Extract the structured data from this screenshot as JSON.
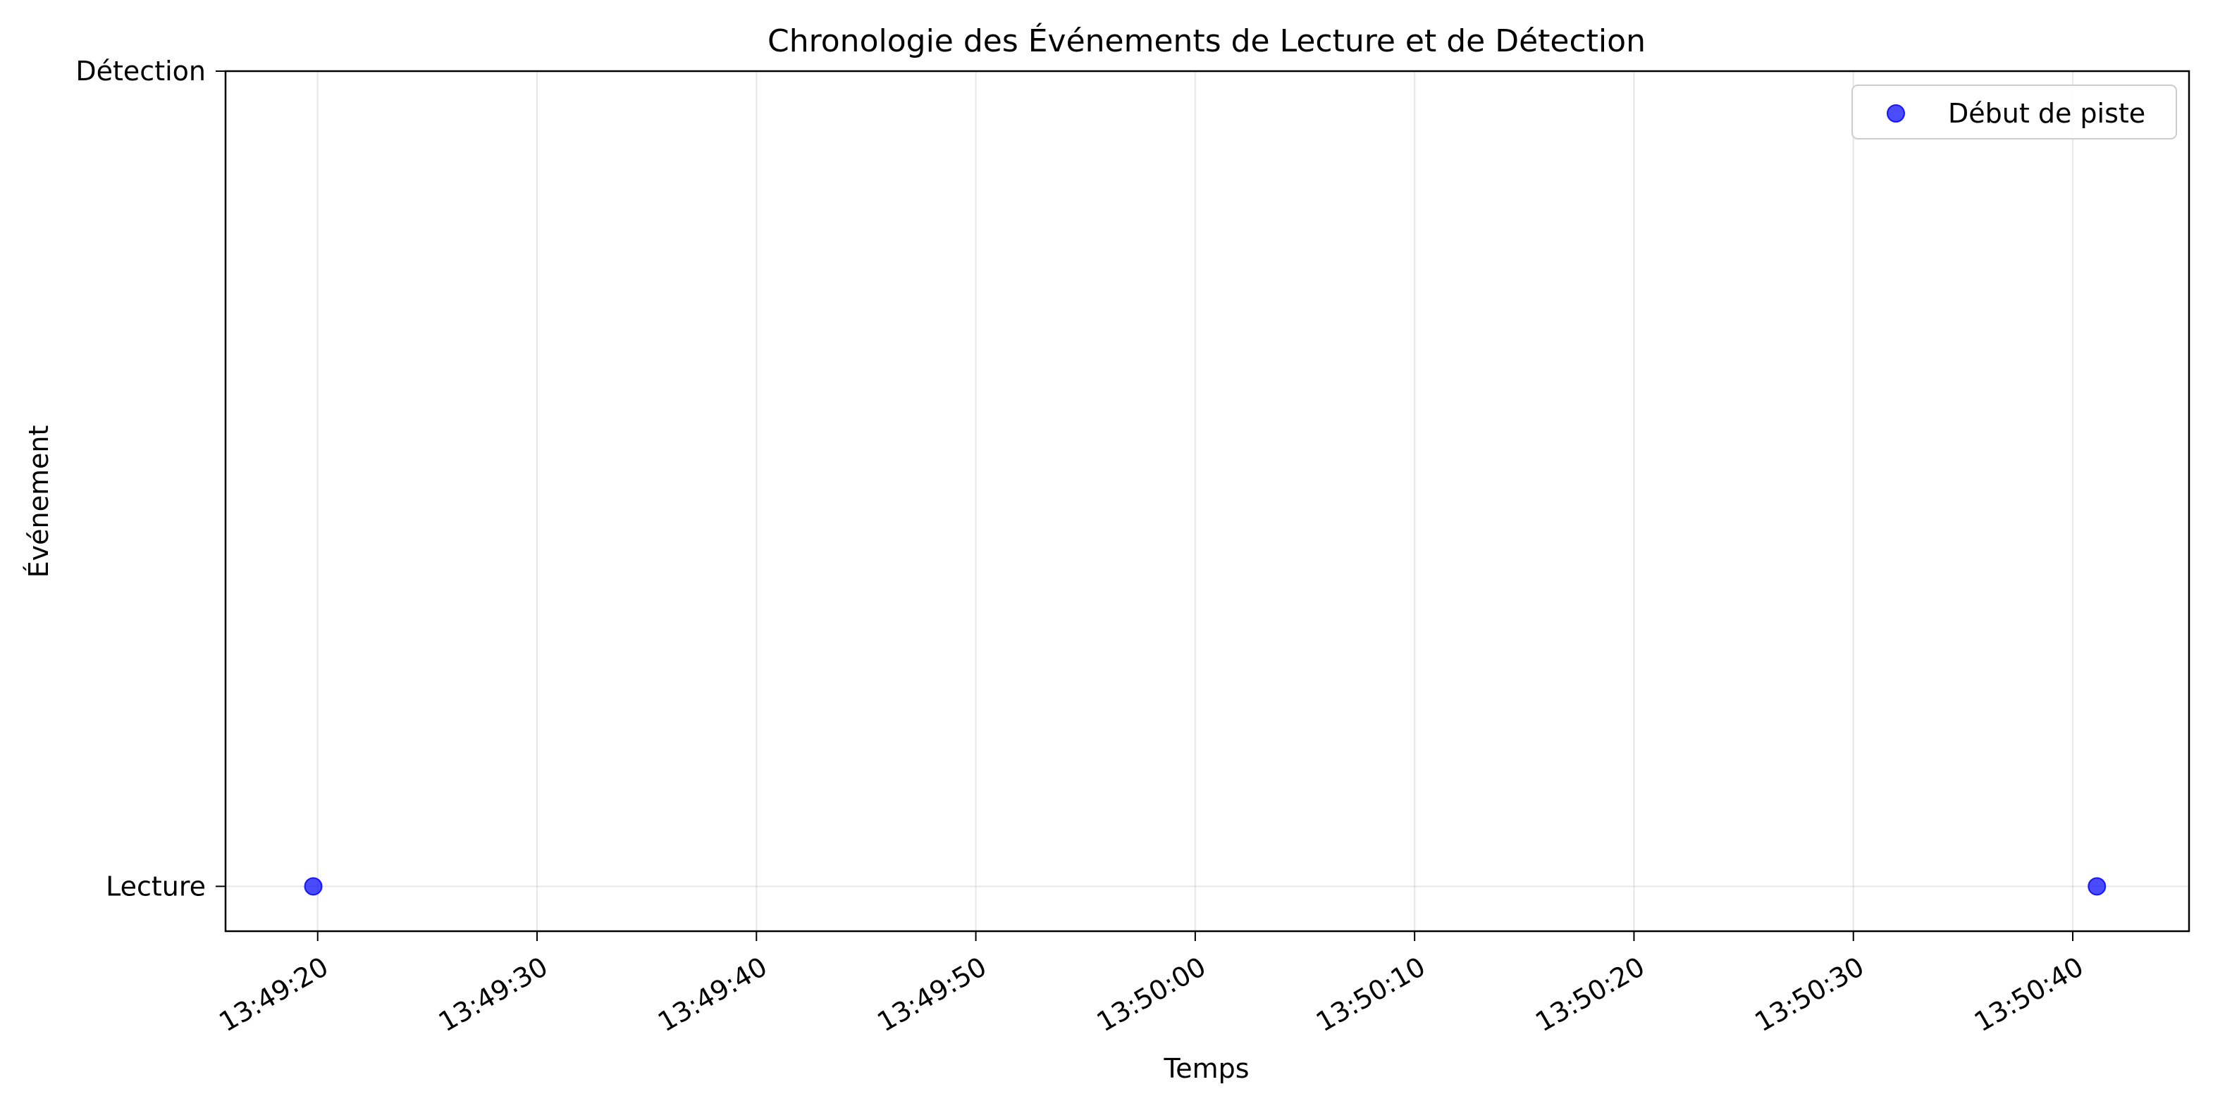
{
  "chart_data": {
    "type": "scatter",
    "title": "Chronologie des Événements de Lecture et de Détection",
    "xlabel": "Temps",
    "ylabel": "Événement",
    "x_ticks": [
      "13:49:20",
      "13:49:30",
      "13:49:40",
      "13:49:50",
      "13:50:00",
      "13:50:10",
      "13:50:20",
      "13:50:30",
      "13:50:40"
    ],
    "x_tick_seconds": [
      0,
      10,
      20,
      30,
      40,
      50,
      60,
      70,
      80
    ],
    "xlim_seconds": [
      -4.2,
      85.3
    ],
    "y_categories": [
      "Lecture",
      "Détection"
    ],
    "ylim": [
      -0.055,
      1.0
    ],
    "grid": true,
    "legend_position": "top-right",
    "series": [
      {
        "name": "Début de piste",
        "color": "#0000ff",
        "alpha": 0.7,
        "points": [
          {
            "time": "13:49:19.8",
            "t_seconds": -0.2,
            "category": "Lecture"
          },
          {
            "time": "13:50:41.1",
            "t_seconds": 81.1,
            "category": "Lecture"
          }
        ]
      }
    ]
  }
}
